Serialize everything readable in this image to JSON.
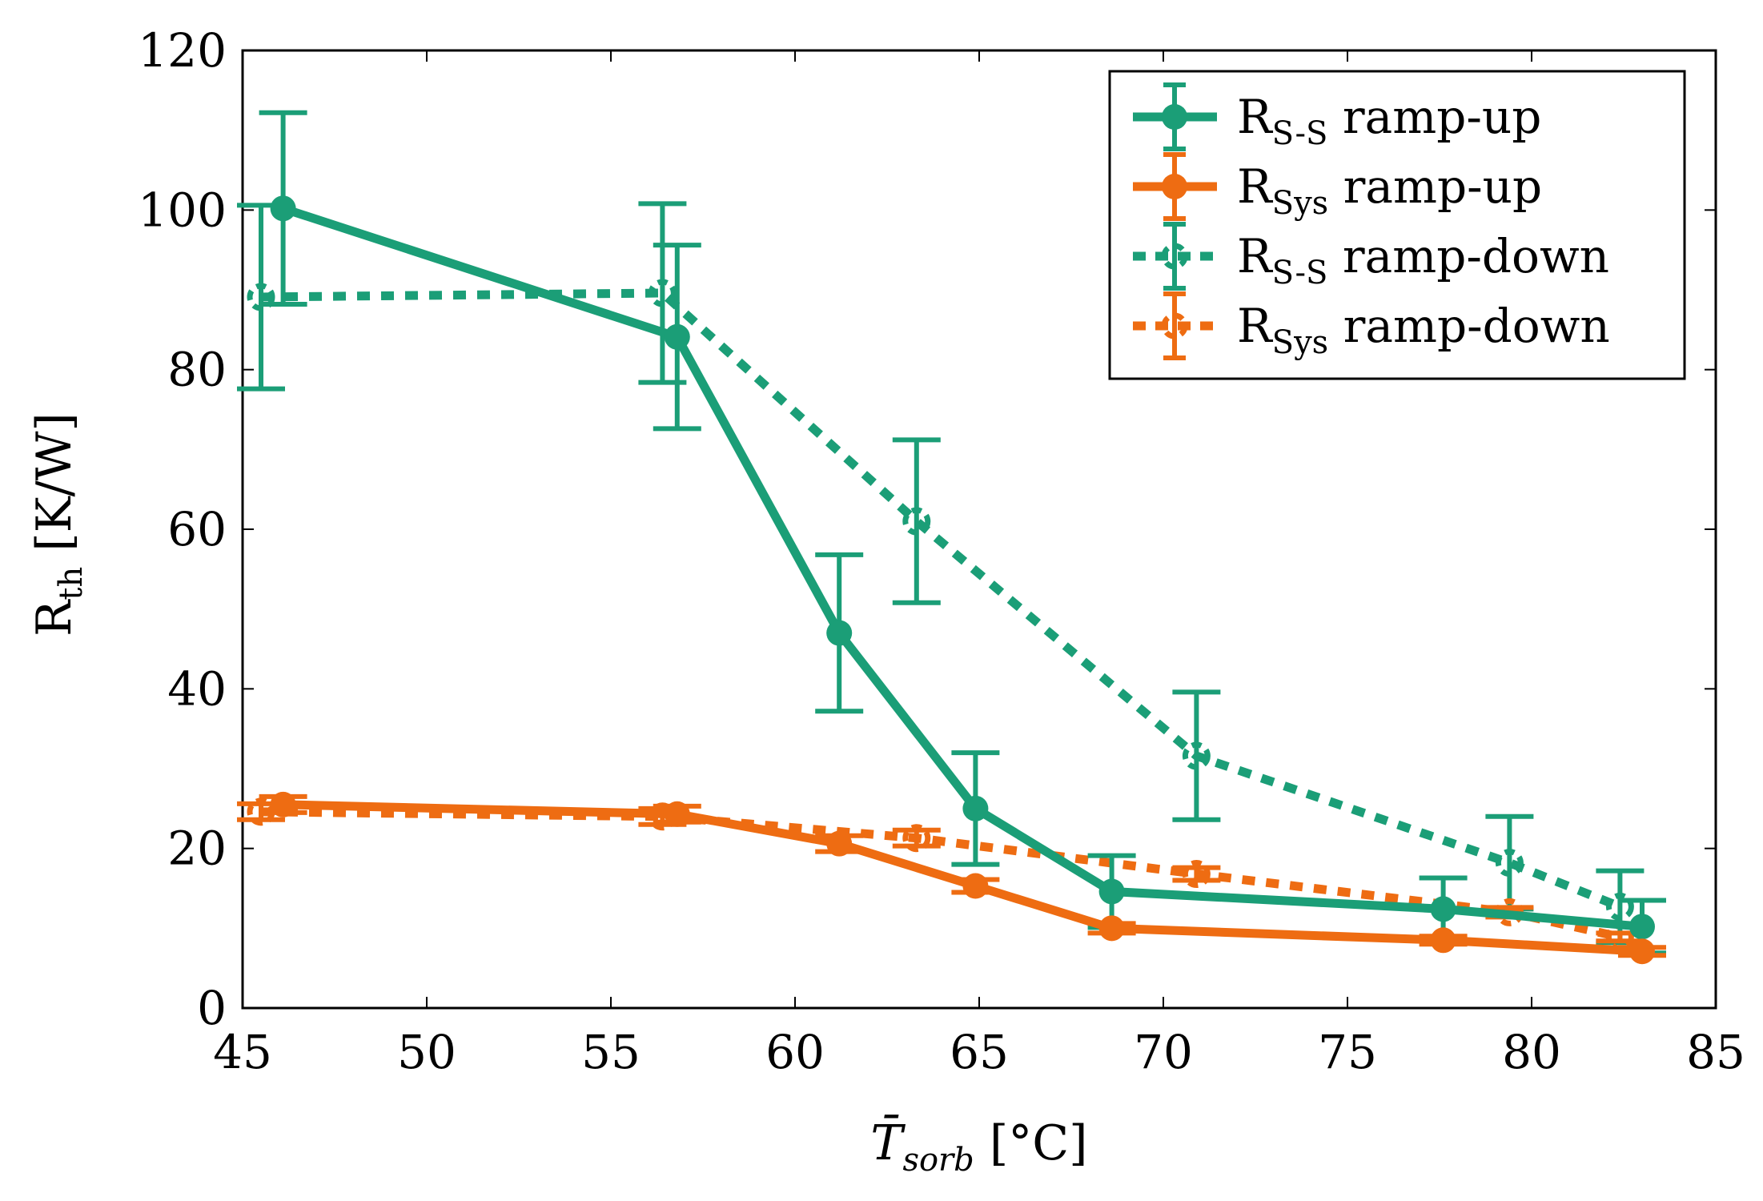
{
  "chart_data": {
    "type": "line",
    "xlabel": {
      "main": "T̄",
      "sub": "sorb",
      "unit": "[°C]"
    },
    "ylabel": {
      "main": "R",
      "sub": "th",
      "unit": "[K/W]"
    },
    "xlim": [
      45,
      85
    ],
    "ylim": [
      0,
      120
    ],
    "xticks": [
      45,
      50,
      55,
      60,
      65,
      70,
      75,
      80,
      85
    ],
    "yticks": [
      0,
      20,
      40,
      60,
      80,
      100,
      120
    ],
    "grid": false,
    "legend_position": "top-right",
    "colors": {
      "green": "#1b9e77",
      "orange": "#ee6c12"
    },
    "series": [
      {
        "name": "R_S-S ramp-up",
        "label_main": "R",
        "label_sub": "S-S",
        "label_suffix": "ramp-up",
        "color": "#1b9e77",
        "style": "solid",
        "marker": "filled-circle",
        "x": [
          46.1,
          56.8,
          61.2,
          64.9,
          68.6,
          77.6,
          83.0
        ],
        "y": [
          100.2,
          84.1,
          47.0,
          25.0,
          14.6,
          12.4,
          10.2
        ],
        "err": [
          12.0,
          11.5,
          9.8,
          7.0,
          4.5,
          3.9,
          3.3
        ]
      },
      {
        "name": "R_Sys ramp-up",
        "label_main": "R",
        "label_sub": "Sys",
        "label_suffix": "ramp-up",
        "color": "#ee6c12",
        "style": "solid",
        "marker": "filled-circle",
        "x": [
          46.1,
          56.8,
          61.2,
          64.9,
          68.6,
          77.6,
          83.0
        ],
        "y": [
          25.5,
          24.3,
          20.6,
          15.3,
          10.0,
          8.5,
          7.1
        ],
        "err": [
          1.0,
          1.0,
          1.0,
          0.8,
          0.6,
          0.5,
          0.5
        ]
      },
      {
        "name": "R_S-S ramp-down",
        "label_main": "R",
        "label_sub": "S-S",
        "label_suffix": "ramp-down",
        "color": "#1b9e77",
        "style": "dashed",
        "marker": "half-circle",
        "x": [
          45.5,
          56.4,
          63.3,
          70.9,
          79.4,
          82.4
        ],
        "y": [
          89.1,
          89.6,
          61.0,
          31.6,
          18.2,
          12.7
        ],
        "err": [
          11.5,
          11.2,
          10.2,
          8.0,
          5.8,
          4.5
        ]
      },
      {
        "name": "R_Sys ramp-down",
        "label_main": "R",
        "label_sub": "Sys",
        "label_suffix": "ramp-down",
        "color": "#ee6c12",
        "style": "dashed",
        "marker": "half-circle",
        "x": [
          45.5,
          56.4,
          63.3,
          70.9,
          79.4,
          82.4
        ],
        "y": [
          24.6,
          24.0,
          21.3,
          16.8,
          12.0,
          8.9
        ],
        "err": [
          1.0,
          1.0,
          1.0,
          0.8,
          0.6,
          0.5
        ]
      }
    ]
  }
}
